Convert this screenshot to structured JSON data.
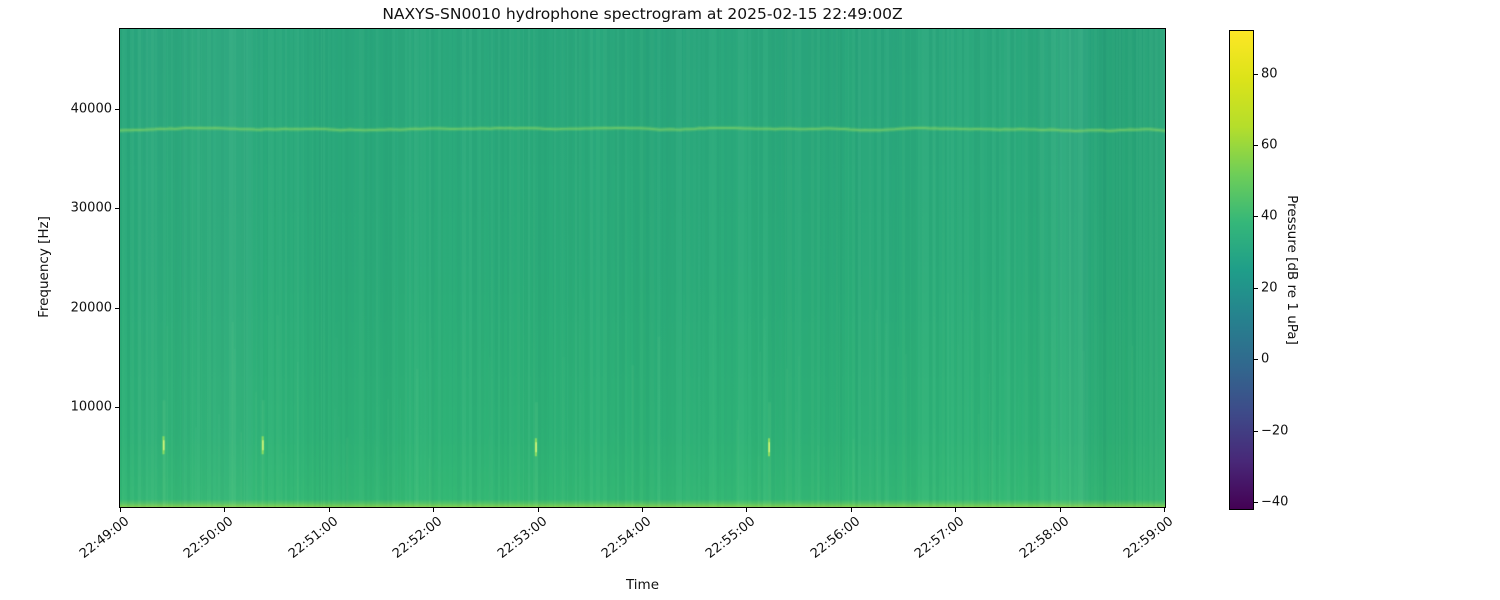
{
  "figure": {
    "title": "NAXYS-SN0010 hydrophone spectrogram at 2025-02-15 22:49:00Z",
    "xlabel": "Time",
    "ylabel": "Frequency [Hz]",
    "colorbar_label": "Pressure [dB re 1 uPa]"
  },
  "chart_data": {
    "type": "heatmap",
    "subtype": "spectrogram",
    "title": "NAXYS-SN0010 hydrophone spectrogram at 2025-02-15 22:49:00Z",
    "xlabel": "Time",
    "ylabel": "Frequency [Hz]",
    "x_ticks": [
      "22:49:00",
      "22:50:00",
      "22:51:00",
      "22:52:00",
      "22:53:00",
      "22:54:00",
      "22:55:00",
      "22:56:00",
      "22:57:00",
      "22:58:00",
      "22:59:00"
    ],
    "x_start": "22:49:00",
    "x_end": "22:59:00",
    "time_span_seconds": 600,
    "y_ticks": [
      10000,
      20000,
      30000,
      40000
    ],
    "y_tick_labels": [
      "10000",
      "20000",
      "30000",
      "40000"
    ],
    "ylim": [
      0,
      48000
    ],
    "colormap": "viridis",
    "colorbar": {
      "label": "Pressure [dB re 1 uPa]",
      "ticks": [
        80,
        60,
        40,
        20,
        0,
        -20,
        -40
      ],
      "tick_labels": [
        "80",
        "60",
        "40",
        "20",
        "0",
        "−20",
        "−40"
      ],
      "vmin": -42,
      "vmax": 92
    },
    "background_levels_dB": {
      "upper_band_35_48kHz": 35,
      "mid_band_5_35kHz": 39,
      "near_0Hz_edge": 58,
      "description": "Broadband level is nearly uniform ~35-40 dB (green); slightly brighter toward low frequencies; thin bright band at the lowest frequency rows."
    },
    "features": {
      "tonal_band": {
        "frequency_hz": 37800,
        "level_dB": 46,
        "description": "Continuous slightly-brighter narrow tonal line across the whole record"
      },
      "transients": [
        {
          "time": "22:49:25",
          "frequency_hz": 6200,
          "level_dB": 62
        },
        {
          "time": "22:50:22",
          "frequency_hz": 6200,
          "level_dB": 62
        },
        {
          "time": "22:52:59",
          "frequency_hz": 6000,
          "level_dB": 64
        },
        {
          "time": "22:55:13",
          "frequency_hz": 6000,
          "level_dB": 62
        }
      ],
      "texture": "Fine vertical striations (second-to-second broadband level fluctuations) over the full band"
    }
  },
  "render": {
    "seed": 20250215,
    "base_gradient": [
      {
        "at": 0.0,
        "color": "#2ba87d"
      },
      {
        "at": 0.5,
        "color": "#2cad7a"
      },
      {
        "at": 0.85,
        "color": "#2fb377"
      },
      {
        "at": 0.984,
        "color": "#34b975"
      },
      {
        "at": 0.993,
        "color": "#58c567"
      },
      {
        "at": 1.0,
        "color": "#84d14e"
      }
    ],
    "striation_strength": 0.075,
    "wide_bands": 26,
    "lower_streaks": 90,
    "tonal_glow": "rgba(140,220,100,0.22)",
    "tonal_core": "rgba(135,215,100,0.45)",
    "transient_faint": "rgba(200,255,170,0.07)",
    "transient_bright": "rgba(170,235,90,0.75)",
    "transient_core": "rgba(220,248,130,0.9)",
    "viridis_stops": [
      "#440154",
      "#482878",
      "#3e4a89",
      "#31688e",
      "#26828e",
      "#1f9e89",
      "#35b779",
      "#6ece58",
      "#b5de2b",
      "#dce319",
      "#fde725"
    ]
  }
}
